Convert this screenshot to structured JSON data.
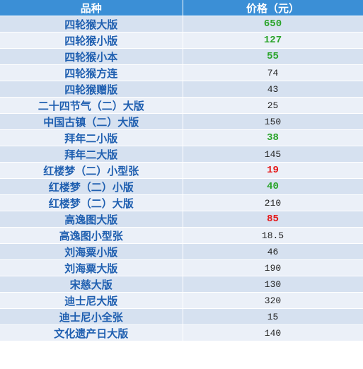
{
  "colors": {
    "header_bg": "#3b8fd6",
    "header_text": "#ffffff",
    "row_even_bg": "#d6e1f0",
    "row_odd_bg": "#ebf0f8",
    "name_text": "#1f5fb0",
    "price_default": "#222222",
    "price_green": "#2aa42a",
    "price_red": "#e51616"
  },
  "table": {
    "header": {
      "name": "品种",
      "price": "价格（元）"
    },
    "rows": [
      {
        "name": "四轮猴大版",
        "price": "650",
        "highlight": "green"
      },
      {
        "name": "四轮猴小版",
        "price": "127",
        "highlight": "green"
      },
      {
        "name": "四轮猴小本",
        "price": "55",
        "highlight": "green"
      },
      {
        "name": "四轮猴方连",
        "price": "74",
        "highlight": "none"
      },
      {
        "name": "四轮猴赠版",
        "price": "43",
        "highlight": "none"
      },
      {
        "name": "二十四节气（二）大版",
        "price": "25",
        "highlight": "none"
      },
      {
        "name": "中国古镇（二）大版",
        "price": "150",
        "highlight": "none"
      },
      {
        "name": "拜年二小版",
        "price": "38",
        "highlight": "green"
      },
      {
        "name": "拜年二大版",
        "price": "145",
        "highlight": "none"
      },
      {
        "name": "红楼梦（二）小型张",
        "price": "19",
        "highlight": "red"
      },
      {
        "name": "红楼梦（二）小版",
        "price": "40",
        "highlight": "green"
      },
      {
        "name": "红楼梦（二）大版",
        "price": "210",
        "highlight": "none"
      },
      {
        "name": "高逸图大版",
        "price": "85",
        "highlight": "red"
      },
      {
        "name": "高逸图小型张",
        "price": "18.5",
        "highlight": "none"
      },
      {
        "name": "刘海粟小版",
        "price": "46",
        "highlight": "none"
      },
      {
        "name": "刘海粟大版",
        "price": "190",
        "highlight": "none"
      },
      {
        "name": "宋慈大版",
        "price": "130",
        "highlight": "none"
      },
      {
        "name": "迪士尼大版",
        "price": "320",
        "highlight": "none"
      },
      {
        "name": "迪士尼小全张",
        "price": "15",
        "highlight": "none"
      },
      {
        "name": "文化遗产日大版",
        "price": "140",
        "highlight": "none"
      }
    ]
  }
}
